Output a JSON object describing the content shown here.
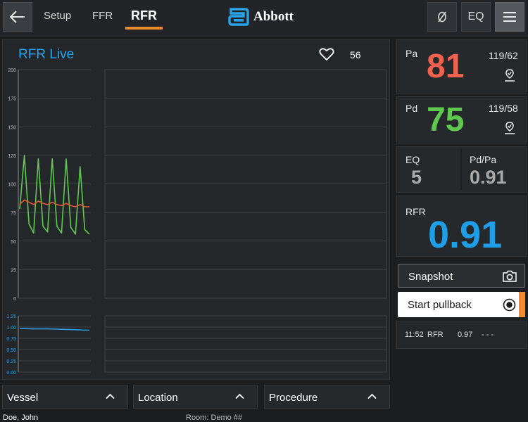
{
  "header": {
    "tabs": [
      "Setup",
      "FFR",
      "RFR"
    ],
    "active_tab": "RFR",
    "logo_text": "Abbott",
    "right_buttons": [
      "zero-icon",
      "EQ",
      "menu-icon"
    ],
    "eq_label": "EQ"
  },
  "chart": {
    "title": "RFR Live",
    "heart_rate": "56"
  },
  "chart_data": [
    {
      "type": "line",
      "y_ticks": [
        "200",
        "175",
        "150",
        "125",
        "100",
        "75",
        "50",
        "25",
        "0"
      ],
      "ylim": [
        0,
        200
      ],
      "series": [
        {
          "color": "#5ec94e",
          "values": [
            78,
            125,
            65,
            57,
            122,
            63,
            58,
            122,
            63,
            57,
            122,
            62,
            56,
            115,
            60,
            56
          ]
        },
        {
          "color": "#e8553d",
          "values": [
            82,
            86,
            84,
            82,
            85,
            83,
            82,
            84,
            82,
            81,
            83,
            81,
            80,
            82,
            80,
            80
          ]
        }
      ]
    },
    {
      "type": "line",
      "y_ticks": [
        "1.25",
        "1.00",
        "0.75",
        "0.50",
        "0.25",
        "0.00"
      ],
      "ylim": [
        0,
        1.25
      ],
      "series": [
        {
          "color": "#2c9be0",
          "values": [
            0.97,
            0.96,
            0.96,
            0.95,
            0.94,
            0.93
          ]
        }
      ]
    }
  ],
  "metrics": {
    "pa": {
      "label": "Pa",
      "value": "81",
      "sys_dia": "119/62",
      "color": "#f0624d"
    },
    "pd": {
      "label": "Pd",
      "value": "75",
      "sys_dia": "119/58",
      "color": "#5ec94e"
    },
    "eq": {
      "label": "EQ",
      "value": "5"
    },
    "pdpa": {
      "label": "Pd/Pa",
      "value": "0.91"
    },
    "rfr": {
      "label": "RFR",
      "value": "0.91",
      "color": "#1f9ee8"
    }
  },
  "actions": {
    "snapshot": "Snapshot",
    "start_pullback": "Start pullback"
  },
  "log": {
    "time": "11:52",
    "type": "RFR",
    "value": "0.97",
    "extra": "- - -"
  },
  "dropdowns": {
    "vessel": "Vessel",
    "location": "Location",
    "procedure": "Procedure"
  },
  "footer": {
    "patient": "Doe, John",
    "room": "Room:  Demo ##"
  }
}
